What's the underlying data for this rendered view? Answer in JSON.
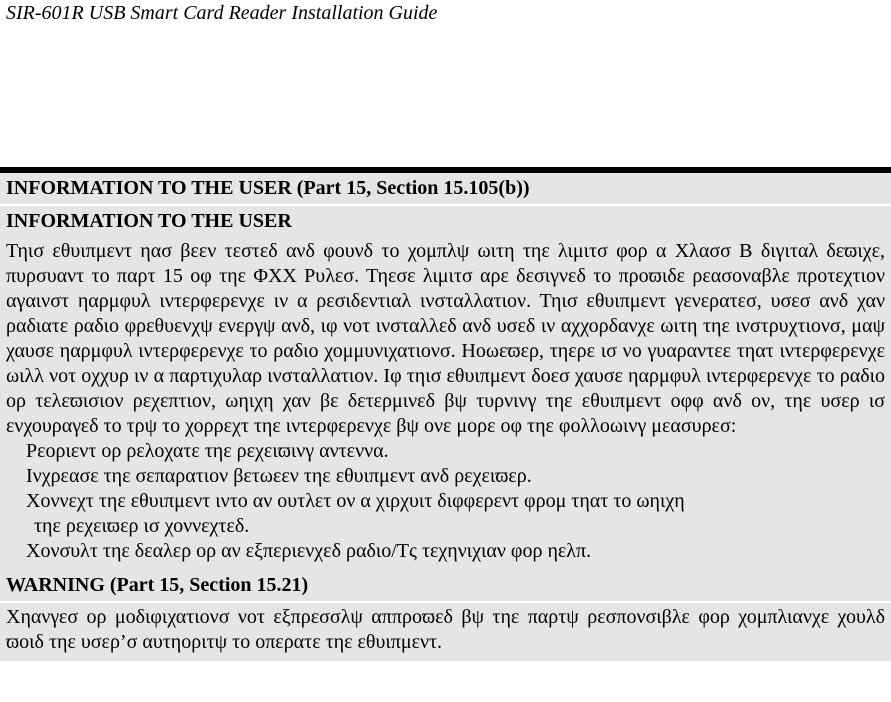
{
  "doc_title": "SIR-601R USB Smart Card Reader Installation Guide",
  "section1": {
    "heading": "INFORMATION TO THE USER (Part 15, Section 15.105(b))",
    "subheading": "INFORMATION TO THE USER",
    "para": "Τηισ εθυιπμεντ ηασ βεεν τεστεδ ανδ φουνδ το χομπλψ ωιτη τηε λιμιτσ φορ α Χλασσ Β διγιταλ δεϖιχε, πυρσυαντ το παρτ 15 οφ τηε ΦΧΧ Ρυλεσ. Τηεσε λιμιτσ αρε δεσιγνεδ το προϖιδε ρεασοναβλε προτεχτιον αγαινστ ηαρμφυλ ιντερφερενχε ιν α ρεσιδεντιαλ ινσταλλατιον. Τηισ εθυιπμεντ γενερατεσ, υσεσ ανδ χαν ραδιατε ραδιο φρεθυενχψ ενεργψ ανδ, ιφ νοτ ινσταλλεδ ανδ υσεδ ιν αχχορδανχε ωιτη τηε ινστρυχτιονσ, μαψ χαυσε ηαρμφυλ ιντερφερενχε το ραδιο χομμυνιχατιονσ. Ηοωεϖερ, τηερε ισ νο γυαραντεε τηατ ιντερφερενχε ωιλλ νοτ οχχυρ ιν α παρτιχυλαρ ινσταλλατιον. Ιφ τηισ εθυιπμεντ δοεσ χαυσε ηαρμφυλ ιντερφερενχε το ραδιο ορ τελεϖισιον ρεχεπτιον, ωηιχη χαν βε δετερμινεδ βψ τυρνινγ τηε εθυιπμεντ οφφ ανδ ον, τηε υσερ ισ ενχουραγεδ το τρψ το χορρεχτ τηε ιντερφερενχε βψ ονε μορε οφ τηε φολλοωινγ μεασυρεσ:",
    "bullet1": "Ρεοριεντ ορ ρελοχατε τηε ρεχειϖινγ αντεννα.",
    "bullet2": "Ινχρεασε τηε σεπαρατιον βετωεεν τηε εθυιπμεντ ανδ ρεχειϖερ.",
    "bullet3": "Χοννεχτ τηε εθυιπμεντ ιντο αν ουτλετ ον α χιρχυιτ διφφερεντ φρομ τηατ το ωηιχη",
    "bullet3b": "τηε ρεχειϖερ ισ χοννεχτεδ.",
    "bullet4": "Χονσυλτ τηε δεαλερ ορ αν εξπεριενχεδ ραδιο/Τς τεχηνιχιαν φορ ηελπ."
  },
  "section2": {
    "heading": "WARNING (Part 15, Section 15.21)",
    "para": "Χηανγεσ ορ μοδιφιχατιονσ νοτ εξπρεσσλψ αππροϖεδ βψ τηε παρτψ ρεσπονσιβλε φορ χομπλιανχε χουλδ ϖοιδ τηε υσερ’σ αυτηοριτψ το οπερατε τηε εθυιπμεντ."
  },
  "colors": {
    "section_bg": "#e5e5e5",
    "bar": "#000000",
    "page_bg": "#ffffff"
  }
}
